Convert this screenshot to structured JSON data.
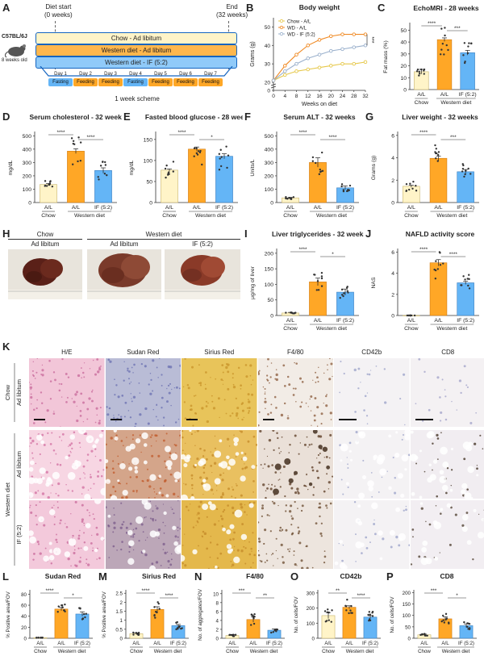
{
  "panels": {
    "A": {
      "letter": "A",
      "diet_start": "Diet start",
      "diet_start_time": "(0 weeks)",
      "end": "End",
      "end_time": "(32 weeks)",
      "strain": "C57BL/6J",
      "age": "8 weeks old",
      "groups": [
        "Chow - Ad libitum",
        "Western diet - Ad libitum",
        "Western diet - IF (5:2)"
      ],
      "days": [
        "Day 1",
        "Day 2",
        "Day 3",
        "Day 4",
        "Day 5",
        "Day 6",
        "Day 7"
      ],
      "day_state": [
        "Fasting",
        "Feeding",
        "Feeding",
        "Fasting",
        "Feeding",
        "Feeding",
        "Feeding"
      ],
      "scheme": "1 week scheme",
      "colors": {
        "chow": "#fff4c8",
        "wd": "#ffb74d",
        "if": "#90caf9",
        "fasting": "#64b5f6",
        "feeding": "#ffa726"
      }
    },
    "B": {
      "letter": "B",
      "chart_data": {
        "type": "line",
        "title": "Body weight",
        "xlabel": "Weeks on diet",
        "ylabel": "Grams (g)",
        "x": [
          0,
          4,
          8,
          12,
          16,
          20,
          24,
          28,
          32
        ],
        "xticks": [
          0,
          4,
          8,
          12,
          16,
          20,
          24,
          28,
          32
        ],
        "yticks": [
          0,
          20,
          30,
          40,
          50
        ],
        "ylim": [
          0,
          55
        ],
        "series": [
          {
            "name": "Chow - A/L",
            "color": "#e6c84a",
            "values": [
              21,
              24,
              26,
              27,
              28,
              29,
              30,
              30,
              31
            ]
          },
          {
            "name": "WD - A/L",
            "color": "#f08a24",
            "values": [
              21,
              29,
              35,
              40,
              43,
              45,
              46,
              46,
              46
            ]
          },
          {
            "name": "WD - IF (5:2)",
            "color": "#9ab0cc",
            "values": [
              21,
              26,
              30,
              33,
              35,
              37,
              38,
              39,
              40
            ]
          }
        ],
        "sig": "***"
      }
    },
    "C": {
      "letter": "C",
      "chart_data": {
        "type": "bar",
        "title": "EchoMRI - 28 weeks",
        "ylabel": "Fat mass (%)",
        "yticks": [
          0,
          10,
          20,
          30,
          40,
          50
        ],
        "ylim": [
          0,
          55
        ],
        "categories": [
          "A/L",
          "A/L",
          "IF (5:2)"
        ],
        "values": [
          15,
          42,
          31
        ],
        "errors": [
          2,
          1.5,
          2
        ],
        "groups": [
          "Chow",
          "Western diet"
        ],
        "sig": [
          {
            "a": 0,
            "b": 1,
            "label": "****"
          },
          {
            "a": 1,
            "b": 2,
            "label": "***"
          }
        ]
      }
    },
    "D": {
      "letter": "D",
      "chart_data": {
        "type": "bar",
        "title": "Serum cholesterol - 32 weeks",
        "ylabel": "mg/dL",
        "yticks": [
          0,
          100,
          200,
          300,
          400,
          500
        ],
        "ylim": [
          0,
          520
        ],
        "categories": [
          "A/L",
          "A/L",
          "IF (5:2)"
        ],
        "values": [
          135,
          385,
          240
        ],
        "errors": [
          8,
          18,
          20
        ],
        "groups": [
          "Chow",
          "Western diet"
        ],
        "sig": [
          {
            "a": 0,
            "b": 1,
            "label": "****"
          },
          {
            "a": 1,
            "b": 2,
            "label": "****"
          }
        ]
      }
    },
    "E": {
      "letter": "E",
      "chart_data": {
        "type": "bar",
        "title": "Fasted blood glucose - 28 weeks",
        "ylabel": "mg/dL",
        "yticks": [
          0,
          50,
          100,
          150
        ],
        "ylim": [
          0,
          165
        ],
        "categories": [
          "A/L",
          "A/L",
          "IF (5:2)"
        ],
        "values": [
          77,
          127,
          110
        ],
        "errors": [
          3,
          5,
          6
        ],
        "groups": [
          "Chow",
          "Western diet"
        ],
        "sig": [
          {
            "a": 0,
            "b": 1,
            "label": "****"
          },
          {
            "a": 1,
            "b": 2,
            "label": "*"
          }
        ]
      }
    },
    "F": {
      "letter": "F",
      "chart_data": {
        "type": "bar",
        "title": "Serum ALT - 32 weeks",
        "ylabel": "Units/L",
        "yticks": [
          0,
          100,
          200,
          300,
          400,
          500
        ],
        "ylim": [
          0,
          520
        ],
        "categories": [
          "A/L",
          "A/L",
          "IF (5:2)"
        ],
        "values": [
          35,
          300,
          110
        ],
        "errors": [
          3,
          35,
          15
        ],
        "groups": [
          "Chow",
          "Western diet"
        ],
        "sig": [
          {
            "a": 0,
            "b": 1,
            "label": "****"
          },
          {
            "a": 1,
            "b": 2,
            "label": "****"
          }
        ]
      }
    },
    "G": {
      "letter": "G",
      "chart_data": {
        "type": "bar",
        "title": "Liver weight - 32 weeks",
        "ylabel": "Grams (g)",
        "yticks": [
          0,
          2,
          4,
          6
        ],
        "ylim": [
          0,
          6.2
        ],
        "categories": [
          "A/L",
          "A/L",
          "IF (5:2)"
        ],
        "values": [
          1.45,
          3.95,
          2.75
        ],
        "errors": [
          0.1,
          0.2,
          0.2
        ],
        "groups": [
          "Chow",
          "Western diet"
        ],
        "sig": [
          {
            "a": 0,
            "b": 1,
            "label": "****"
          },
          {
            "a": 1,
            "b": 2,
            "label": "***"
          }
        ]
      }
    },
    "H": {
      "letter": "H",
      "group1": "Chow",
      "group2": "Western diet",
      "cap1": "Ad libitum",
      "cap2": "Ad libitum",
      "cap3": "IF (5:2)"
    },
    "I": {
      "letter": "I",
      "chart_data": {
        "type": "bar",
        "title": "Liver triglycerides - 32 weeks",
        "ylabel": "μg/mg of liver",
        "yticks": [
          0,
          50,
          100,
          150,
          200
        ],
        "ylim": [
          0,
          210
        ],
        "categories": [
          "A/L",
          "A/L",
          "IF (5:2)"
        ],
        "values": [
          8,
          108,
          75
        ],
        "errors": [
          2,
          12,
          10
        ],
        "groups": [
          "Chow",
          "Western diet"
        ],
        "sig": [
          {
            "a": 0,
            "b": 1,
            "label": "****"
          },
          {
            "a": 1,
            "b": 2,
            "label": "*"
          }
        ]
      }
    },
    "J": {
      "letter": "J",
      "chart_data": {
        "type": "bar",
        "title": "NAFLD activity score",
        "ylabel": "NAS",
        "yticks": [
          0,
          2,
          4,
          6
        ],
        "ylim": [
          0,
          6.2
        ],
        "categories": [
          "A/L",
          "A/L",
          "IF (5:2)"
        ],
        "values": [
          0,
          5,
          3.1
        ],
        "errors": [
          0,
          0.3,
          0.15
        ],
        "groups": [
          "Chow",
          "Western diet"
        ],
        "sig": [
          {
            "a": 0,
            "b": 1,
            "label": "****"
          },
          {
            "a": 1,
            "b": 2,
            "label": "****"
          }
        ]
      }
    },
    "K": {
      "letter": "K",
      "columns": [
        "H/E",
        "Sudan Red",
        "Sirius Red",
        "F4/80",
        "CD42b",
        "CD8"
      ],
      "row_group1": "Chow",
      "row_group2": "Western diet",
      "row_labels": [
        "Ad libitum",
        "Ad libitum",
        "IF (5:2)"
      ]
    },
    "L": {
      "letter": "L",
      "chart_data": {
        "type": "bar",
        "title": "Sudan Red",
        "ylabel": "% Positive area/FOV",
        "yticks": [
          0,
          20,
          40,
          60,
          80
        ],
        "ylim": [
          0,
          85
        ],
        "categories": [
          "A/L",
          "A/L",
          "IF (5:2)"
        ],
        "values": [
          1,
          53,
          44
        ],
        "errors": [
          0.3,
          3,
          4
        ],
        "groups": [
          "Chow",
          "Western diet"
        ],
        "sig": [
          {
            "a": 0,
            "b": 1,
            "label": "****"
          },
          {
            "a": 1,
            "b": 2,
            "label": "*"
          }
        ]
      }
    },
    "M": {
      "letter": "M",
      "chart_data": {
        "type": "bar",
        "title": "Sirius Red",
        "ylabel": "% Positive area/FOV",
        "yticks": [
          0,
          0.5,
          1.0,
          1.5,
          2.0,
          2.5
        ],
        "ylim": [
          0,
          2.6
        ],
        "categories": [
          "A/L",
          "A/L",
          "IF (5:2)"
        ],
        "values": [
          0.25,
          1.6,
          0.7
        ],
        "errors": [
          0.05,
          0.15,
          0.07
        ],
        "groups": [
          "Chow",
          "Western diet"
        ],
        "sig": [
          {
            "a": 0,
            "b": 1,
            "label": "****"
          },
          {
            "a": 1,
            "b": 2,
            "label": "****"
          }
        ]
      }
    },
    "N": {
      "letter": "N",
      "chart_data": {
        "type": "bar",
        "title": "F4/80",
        "ylabel": "No. of aggregates/FOV",
        "yticks": [
          0,
          2,
          4,
          6,
          8,
          10
        ],
        "ylim": [
          0,
          10.5
        ],
        "categories": [
          "A/L",
          "A/L",
          "IF (5:2)"
        ],
        "values": [
          0.6,
          4.2,
          1.8
        ],
        "errors": [
          0.2,
          0.6,
          0.3
        ],
        "groups": [
          "Chow",
          "Western diet"
        ],
        "sig": [
          {
            "a": 0,
            "b": 1,
            "label": "***"
          },
          {
            "a": 1,
            "b": 2,
            "label": "**"
          }
        ]
      }
    },
    "O": {
      "letter": "O",
      "chart_data": {
        "type": "bar",
        "title": "CD42b",
        "ylabel": "No. of cells/FOV",
        "yticks": [
          0,
          100,
          200,
          300
        ],
        "ylim": [
          0,
          310
        ],
        "categories": [
          "A/L",
          "A/L",
          "IF (5:2)"
        ],
        "values": [
          150,
          205,
          140
        ],
        "errors": [
          20,
          10,
          10
        ],
        "groups": [
          "Chow",
          "Western diet"
        ],
        "sig": [
          {
            "a": 0,
            "b": 1,
            "label": "**"
          },
          {
            "a": 1,
            "b": 2,
            "label": "****"
          }
        ]
      }
    },
    "P": {
      "letter": "P",
      "chart_data": {
        "type": "bar",
        "title": "CD8",
        "ylabel": "No. of cells/FOV",
        "yticks": [
          0,
          50,
          100,
          150,
          200
        ],
        "ylim": [
          0,
          205
        ],
        "categories": [
          "A/L",
          "A/L",
          "IF (5:2)"
        ],
        "values": [
          15,
          85,
          55
        ],
        "errors": [
          3,
          9,
          8
        ],
        "groups": [
          "Chow",
          "Western diet"
        ],
        "sig": [
          {
            "a": 0,
            "b": 1,
            "label": "***"
          },
          {
            "a": 1,
            "b": 2,
            "label": "*"
          }
        ]
      }
    }
  },
  "bar_colors": [
    "#fff4c8",
    "#ffa726",
    "#64b5f6"
  ],
  "bar_edges": [
    "#c8b46a",
    "#d37a10",
    "#3a7fc0"
  ]
}
